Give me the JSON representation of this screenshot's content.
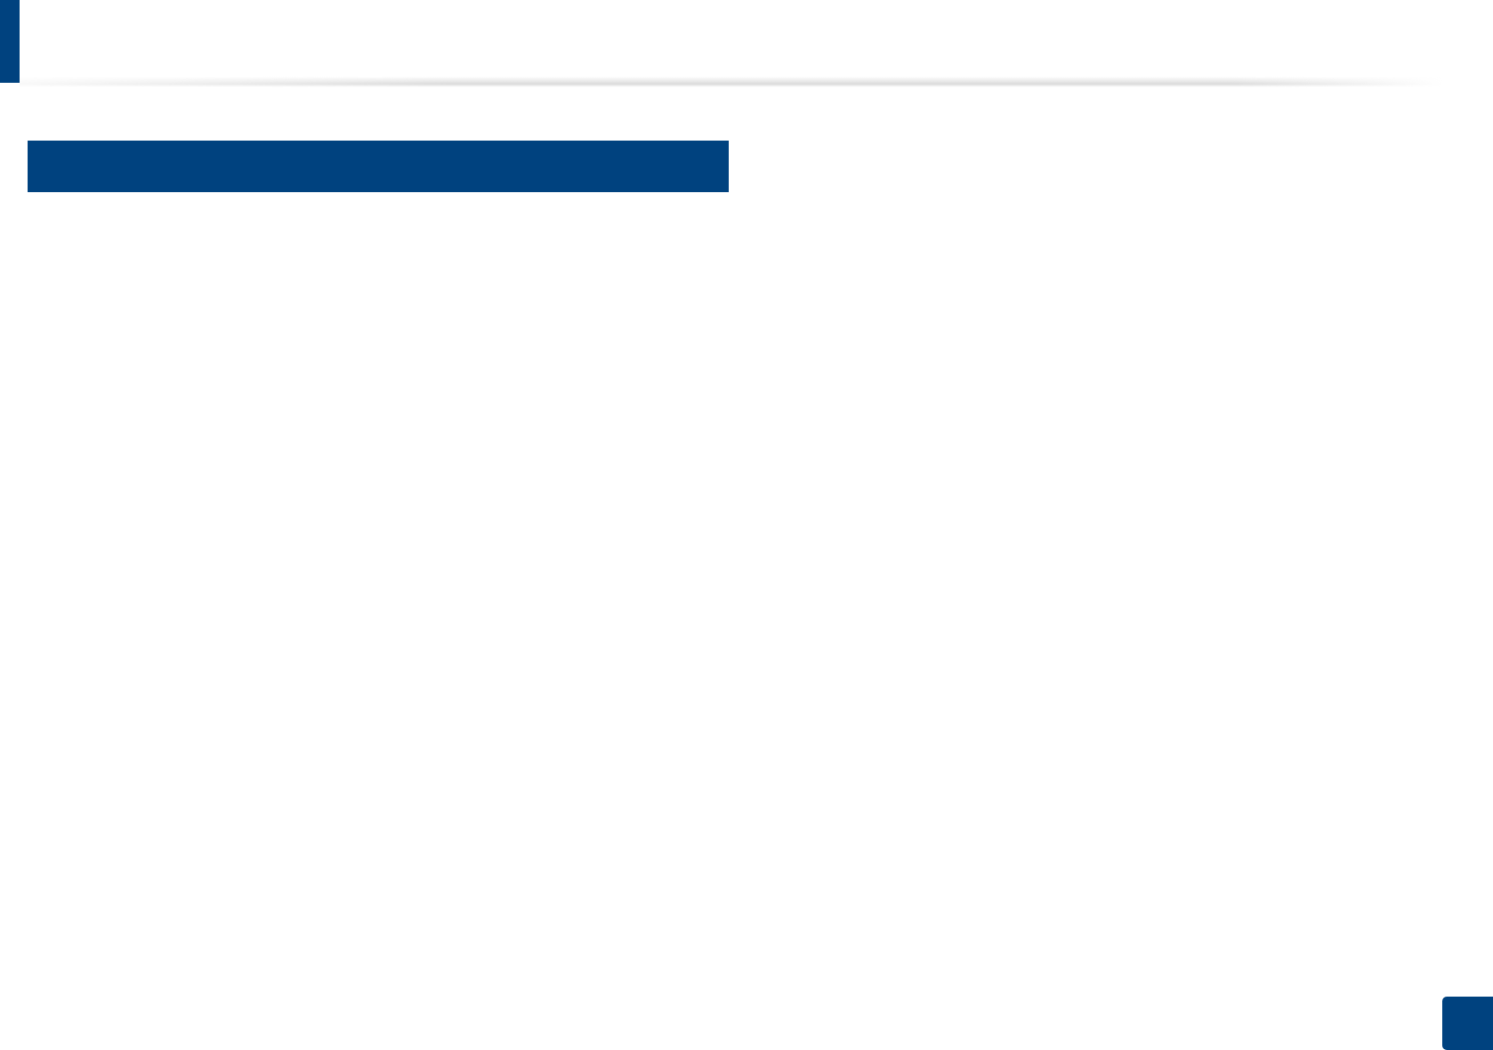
{
  "colors": {
    "brand_blue": "#00427f",
    "background": "#ffffff",
    "header_rule_shadow": "#bebebe"
  }
}
